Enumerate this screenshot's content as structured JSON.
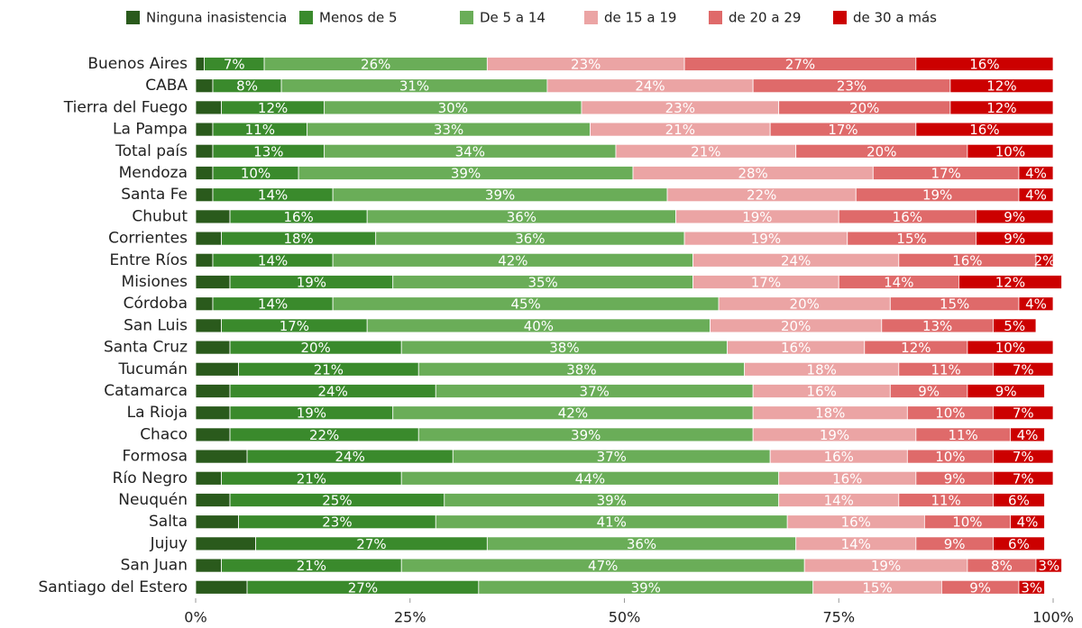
{
  "chart_data": {
    "type": "stacked-bar-horizontal",
    "categories": [
      "Buenos Aires",
      "CABA",
      "Tierra del Fuego",
      "La Pampa",
      "Total país",
      "Mendoza",
      "Santa Fe",
      "Chubut",
      "Corrientes",
      "Entre Ríos",
      "Misiones",
      "Córdoba",
      "San Luis",
      "Santa Cruz",
      "Tucumán",
      "Catamarca",
      "La Rioja",
      "Chaco",
      "Formosa",
      "Río Negro",
      "Neuquén",
      "Salta",
      "Jujuy",
      "San Juan",
      "Santiago del Estero"
    ],
    "series": [
      {
        "name": "Ninguna inasistencia",
        "color": "#2a5a1c",
        "values": [
          1,
          2,
          3,
          2,
          2,
          2,
          2,
          4,
          3,
          2,
          4,
          2,
          3,
          4,
          5,
          4,
          4,
          4,
          6,
          3,
          4,
          5,
          7,
          3,
          6
        ]
      },
      {
        "name": "Menos de 5",
        "color": "#3a8a2c",
        "values": [
          7,
          8,
          12,
          11,
          13,
          10,
          14,
          16,
          18,
          14,
          19,
          14,
          17,
          20,
          21,
          24,
          19,
          22,
          24,
          21,
          25,
          23,
          27,
          21,
          27
        ],
        "value_labels": [
          "7%",
          "8%",
          "12%",
          "11%",
          "13%",
          "10%",
          "14%",
          "16%",
          "18%",
          "14%",
          "19%",
          "14%",
          "17%",
          "20%",
          "21%",
          "24%",
          "19%",
          "22%",
          "24%",
          "21%",
          "25%",
          "23%",
          "27%",
          "21%",
          "27%"
        ]
      },
      {
        "name": "De 5 a 14",
        "color": "#6aad58",
        "values": [
          26,
          31,
          30,
          33,
          34,
          39,
          39,
          36,
          36,
          42,
          35,
          45,
          40,
          38,
          38,
          37,
          42,
          39,
          37,
          44,
          39,
          41,
          36,
          47,
          39
        ],
        "value_labels": [
          "26%",
          "31%",
          "30%",
          "33%",
          "34%",
          "39%",
          "39%",
          "36%",
          "36%",
          "42%",
          "35%",
          "45%",
          "40%",
          "38%",
          "38%",
          "37%",
          "42%",
          "39%",
          "37%",
          "44%",
          "39%",
          "41%",
          "36%",
          "47%",
          "39%"
        ]
      },
      {
        "name": "de 15 a 19",
        "color": "#eba4a4",
        "values": [
          23,
          24,
          23,
          21,
          21,
          28,
          22,
          19,
          19,
          24,
          17,
          20,
          20,
          16,
          18,
          16,
          18,
          19,
          16,
          16,
          14,
          16,
          14,
          19,
          15
        ],
        "value_labels": [
          "23%",
          "24%",
          "23%",
          "21%",
          "21%",
          "28%",
          "22%",
          "19%",
          "19%",
          "24%",
          "17%",
          "20%",
          "20%",
          "16%",
          "18%",
          "16%",
          "18%",
          "19%",
          "16%",
          "16%",
          "14%",
          "16%",
          "14%",
          "19%",
          "15%"
        ]
      },
      {
        "name": "de 20 a 29",
        "color": "#df6a6a",
        "values": [
          27,
          23,
          20,
          17,
          20,
          17,
          19,
          16,
          15,
          16,
          14,
          15,
          13,
          12,
          11,
          9,
          10,
          11,
          10,
          9,
          11,
          10,
          9,
          8,
          9
        ],
        "value_labels": [
          "27%",
          "23%",
          "20%",
          "17%",
          "20%",
          "17%",
          "19%",
          "16%",
          "15%",
          "16%",
          "14%",
          "15%",
          "13%",
          "12%",
          "11%",
          "9%",
          "10%",
          "11%",
          "10%",
          "9%",
          "11%",
          "10%",
          "9%",
          "8%",
          "9%"
        ]
      },
      {
        "name": "de 30 a más",
        "color": "#cc0000",
        "values": [
          16,
          12,
          12,
          16,
          10,
          4,
          4,
          9,
          9,
          2,
          12,
          4,
          5,
          10,
          7,
          9,
          7,
          4,
          7,
          7,
          6,
          4,
          6,
          3,
          3
        ],
        "value_labels": [
          "16%",
          "12%",
          "12%",
          "16%",
          "10%",
          "4%",
          "4%",
          "9%",
          "9%",
          "2%",
          "12%",
          "4%",
          "5%",
          "10%",
          "7%",
          "9%",
          "7%",
          "4%",
          "7%",
          "7%",
          "6%",
          "4%",
          "6%",
          "3%",
          "3%"
        ]
      }
    ],
    "xlim": [
      0,
      100
    ],
    "xticks": [
      {
        "value": 0,
        "label": "0%"
      },
      {
        "value": 25,
        "label": "25%"
      },
      {
        "value": 50,
        "label": "50%"
      },
      {
        "value": 75,
        "label": "75%"
      },
      {
        "value": 100,
        "label": "100%"
      }
    ],
    "legend": "top"
  }
}
